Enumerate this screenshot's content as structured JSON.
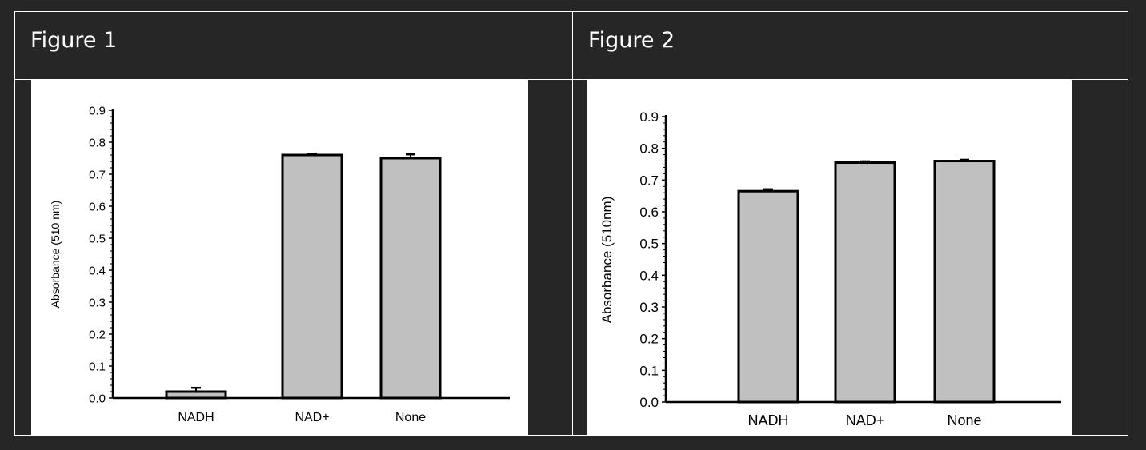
{
  "figures": [
    {
      "title": "Figure 1",
      "chart_data": {
        "type": "bar",
        "categories": [
          "NADH",
          "NAD+",
          "None"
        ],
        "values": [
          0.02,
          0.76,
          0.75
        ],
        "errors": [
          0.012,
          0.003,
          0.012
        ],
        "ylabel": "Absorbance (510 nm)",
        "xlabel": "",
        "ylim": [
          0,
          0.9
        ],
        "yticks": [
          "0.0",
          "0.1",
          "0.2",
          "0.3",
          "0.4",
          "0.5",
          "0.6",
          "0.7",
          "0.8",
          "0.9"
        ],
        "bar_color": "#c0c0c0",
        "grid": false
      }
    },
    {
      "title": "Figure 2",
      "chart_data": {
        "type": "bar",
        "categories": [
          "NADH",
          "NAD+",
          "None"
        ],
        "values": [
          0.665,
          0.755,
          0.76
        ],
        "errors": [
          0.006,
          0.004,
          0.004
        ],
        "ylabel": "Absorbance (510nm)",
        "xlabel": "",
        "ylim": [
          0,
          0.9
        ],
        "yticks": [
          "0.0",
          "0.1",
          "0.2",
          "0.3",
          "0.4",
          "0.5",
          "0.6",
          "0.7",
          "0.8",
          "0.9"
        ],
        "bar_color": "#c0c0c0",
        "grid": false
      }
    }
  ]
}
